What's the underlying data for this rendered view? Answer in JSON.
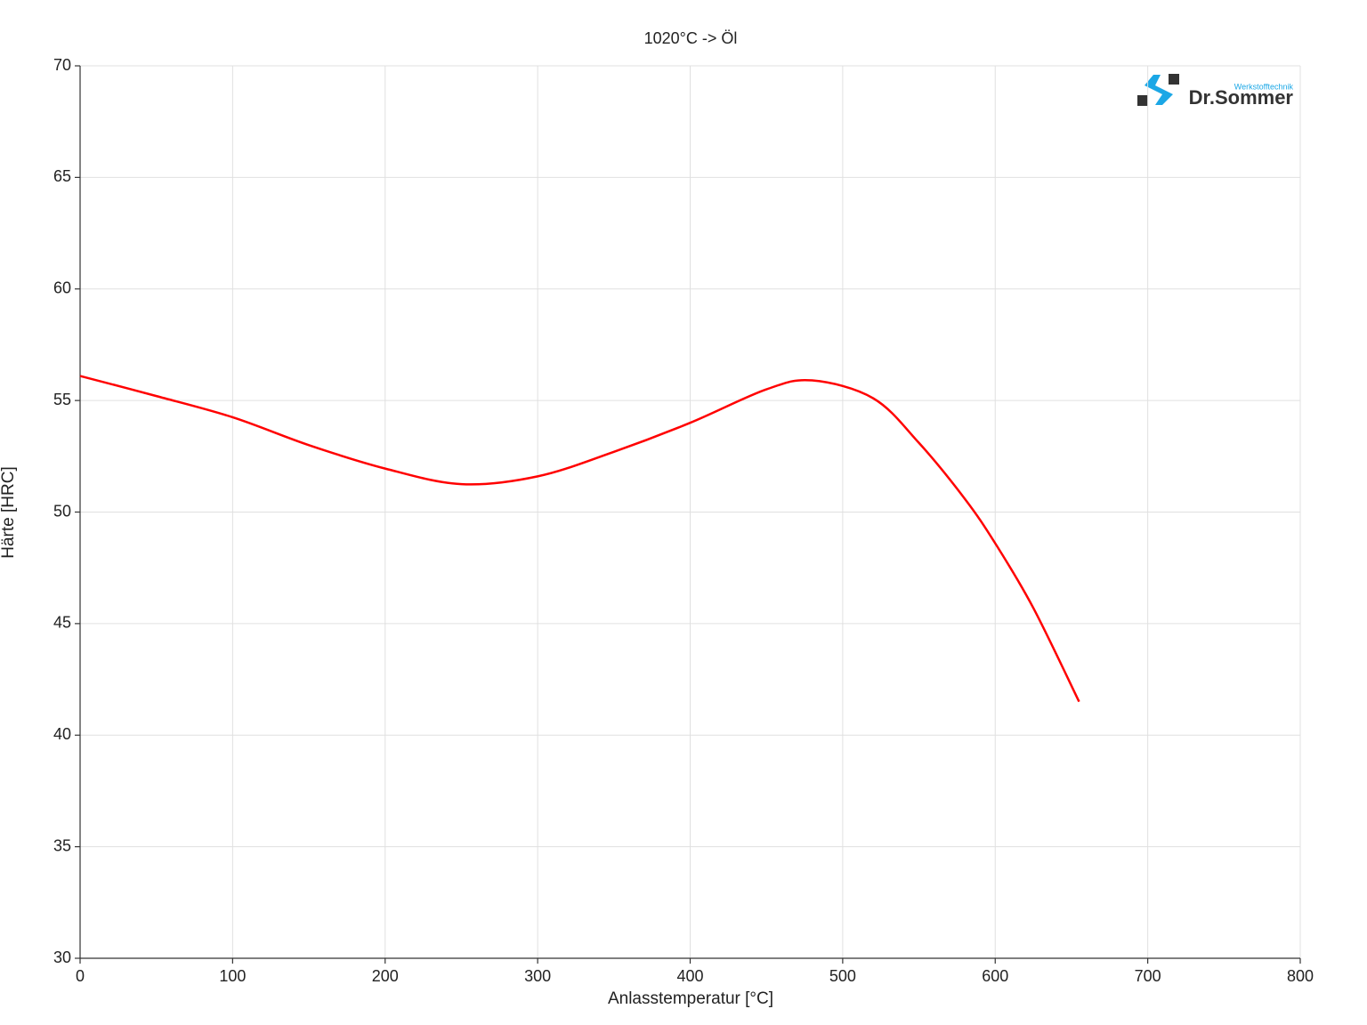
{
  "chart_data": {
    "type": "line",
    "title": "1020°C -> Öl",
    "x_label": "Anlasstemperatur [°C]",
    "y_label": "Härte [HRC]",
    "logo": {
      "brand": "Dr.Sommer",
      "sub": "Werkstofftechnik"
    },
    "x": [
      0,
      50,
      100,
      150,
      200,
      250,
      300,
      350,
      400,
      450,
      480,
      520,
      550,
      580,
      600,
      625,
      655
    ],
    "series": [
      {
        "name": "1020°C -> Öl",
        "color": "#ff0000",
        "values": [
          56.1,
          55.2,
          54.25,
          53.0,
          51.95,
          51.25,
          51.6,
          52.7,
          54.0,
          55.5,
          55.9,
          55.1,
          53.1,
          50.6,
          48.6,
          45.7,
          41.5
        ]
      }
    ],
    "xlim": [
      0,
      800
    ],
    "xticks": [
      0,
      100,
      200,
      300,
      400,
      500,
      600,
      700,
      800
    ],
    "ylim": [
      30,
      70
    ],
    "yticks": [
      30,
      35,
      40,
      45,
      50,
      55,
      60,
      65,
      70
    ],
    "grid": true
  }
}
